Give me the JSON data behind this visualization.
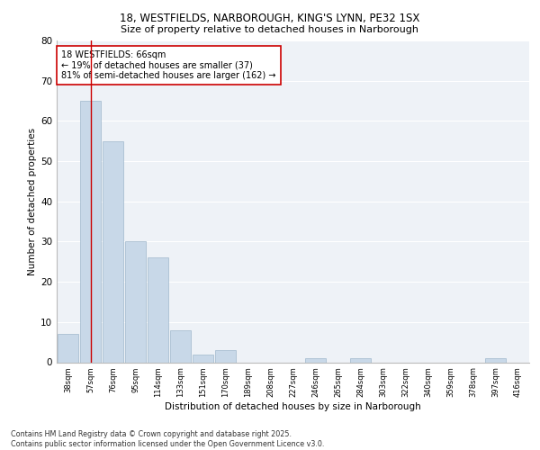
{
  "title_line1": "18, WESTFIELDS, NARBOROUGH, KING'S LYNN, PE32 1SX",
  "title_line2": "Size of property relative to detached houses in Narborough",
  "xlabel": "Distribution of detached houses by size in Narborough",
  "ylabel": "Number of detached properties",
  "bar_color": "#c8d8e8",
  "bar_edge_color": "#a0b8cc",
  "bg_color": "#eef2f7",
  "grid_color": "#ffffff",
  "categories": [
    "38sqm",
    "57sqm",
    "76sqm",
    "95sqm",
    "114sqm",
    "133sqm",
    "151sqm",
    "170sqm",
    "189sqm",
    "208sqm",
    "227sqm",
    "246sqm",
    "265sqm",
    "284sqm",
    "303sqm",
    "322sqm",
    "340sqm",
    "359sqm",
    "378sqm",
    "397sqm",
    "416sqm"
  ],
  "values": [
    7,
    65,
    55,
    30,
    26,
    8,
    2,
    3,
    0,
    0,
    0,
    1,
    0,
    1,
    0,
    0,
    0,
    0,
    0,
    1,
    0
  ],
  "vline_x": 1,
  "vline_color": "#cc0000",
  "annotation_text": "18 WESTFIELDS: 66sqm\n← 19% of detached houses are smaller (37)\n81% of semi-detached houses are larger (162) →",
  "annotation_box_color": "#ffffff",
  "annotation_box_edge": "#cc0000",
  "footer": "Contains HM Land Registry data © Crown copyright and database right 2025.\nContains public sector information licensed under the Open Government Licence v3.0.",
  "ylim": [
    0,
    80
  ],
  "yticks": [
    0,
    10,
    20,
    30,
    40,
    50,
    60,
    70,
    80
  ]
}
